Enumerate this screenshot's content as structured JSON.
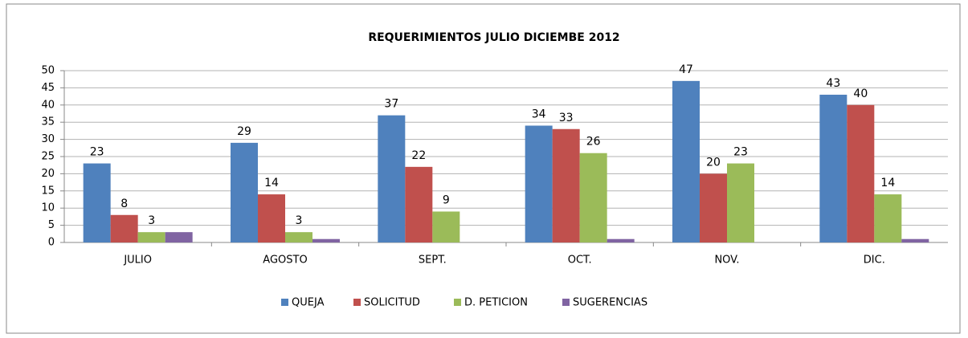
{
  "chart_data": {
    "type": "bar",
    "title": "REQUERIMIENTOS JULIO DICIEMBE 2012",
    "categories": [
      "JULIO",
      "AGOSTO",
      "SEPT.",
      "OCT.",
      "NOV.",
      "DIC."
    ],
    "series": [
      {
        "name": "QUEJA",
        "color": "#4f81bd",
        "values": [
          23,
          29,
          37,
          34,
          47,
          43
        ],
        "labels": true
      },
      {
        "name": "SOLICITUD",
        "color": "#c0504d",
        "values": [
          8,
          14,
          22,
          33,
          20,
          40
        ],
        "labels": true
      },
      {
        "name": "D. PETICION",
        "color": "#9bbb59",
        "values": [
          3,
          3,
          9,
          26,
          23,
          14
        ],
        "labels": true
      },
      {
        "name": "SUGERENCIAS",
        "color": "#8064a2",
        "values": [
          3,
          1,
          0,
          1,
          0,
          1
        ],
        "labels": false
      }
    ],
    "ylim": [
      0,
      50
    ],
    "yticks": [
      0,
      5,
      10,
      15,
      20,
      25,
      30,
      35,
      40,
      45,
      50
    ],
    "grid": true,
    "legend": "bottom"
  }
}
